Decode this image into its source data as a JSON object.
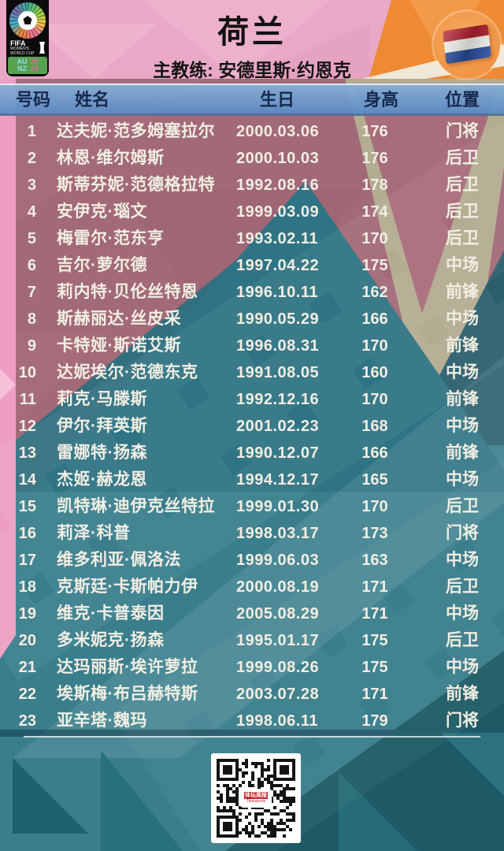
{
  "header": {
    "title": "荷兰",
    "coach_line": "主教练: 安德里斯·约恩克",
    "logo": {
      "fifa": "FIFA",
      "sub": "WOMEN'S\nWORLD CUP",
      "hosts": "AU\nNZ",
      "year": "20\n23"
    }
  },
  "table": {
    "columns": [
      "号码",
      "姓名",
      "生日",
      "身高",
      "位置"
    ],
    "players": [
      {
        "no": "1",
        "name": "达夫妮·范多姆塞拉尔",
        "dob": "2000.03.06",
        "height": "176",
        "pos": "门将"
      },
      {
        "no": "2",
        "name": "林恩·维尔姆斯",
        "dob": "2000.10.03",
        "height": "176",
        "pos": "后卫"
      },
      {
        "no": "3",
        "name": "斯蒂芬妮·范德格拉特",
        "dob": "1992.08.16",
        "height": "178",
        "pos": "后卫"
      },
      {
        "no": "4",
        "name": "安伊克·瑙文",
        "dob": "1999.03.09",
        "height": "174",
        "pos": "后卫"
      },
      {
        "no": "5",
        "name": "梅雷尔·范东亨",
        "dob": "1993.02.11",
        "height": "170",
        "pos": "后卫"
      },
      {
        "no": "6",
        "name": "吉尔·萝尔德",
        "dob": "1997.04.22",
        "height": "175",
        "pos": "中场"
      },
      {
        "no": "7",
        "name": "莉内特·贝伦丝特恩",
        "dob": "1996.10.11",
        "height": "162",
        "pos": "前锋"
      },
      {
        "no": "8",
        "name": "斯赫丽达·丝皮采",
        "dob": "1990.05.29",
        "height": "166",
        "pos": "中场"
      },
      {
        "no": "9",
        "name": "卡特娅·斯诺艾斯",
        "dob": "1996.08.31",
        "height": "170",
        "pos": "前锋"
      },
      {
        "no": "10",
        "name": "达妮埃尔·范德东克",
        "dob": "1991.08.05",
        "height": "160",
        "pos": "中场"
      },
      {
        "no": "11",
        "name": "莉克·马滕斯",
        "dob": "1992.12.16",
        "height": "170",
        "pos": "前锋"
      },
      {
        "no": "12",
        "name": "伊尔·拜英斯",
        "dob": "2001.02.23",
        "height": "168",
        "pos": "中场"
      },
      {
        "no": "13",
        "name": "雷娜特·扬森",
        "dob": "1990.12.07",
        "height": "166",
        "pos": "前锋"
      },
      {
        "no": "14",
        "name": "杰姬·赫龙恩",
        "dob": "1994.12.17",
        "height": "165",
        "pos": "中场"
      },
      {
        "no": "15",
        "name": "凯特琳·迪伊克丝特拉",
        "dob": "1999.01.30",
        "height": "170",
        "pos": "后卫"
      },
      {
        "no": "16",
        "name": "莉泽·科普",
        "dob": "1998.03.17",
        "height": "173",
        "pos": "门将"
      },
      {
        "no": "17",
        "name": "维多利亚·佩洛法",
        "dob": "1999.06.03",
        "height": "163",
        "pos": "中场"
      },
      {
        "no": "18",
        "name": "克斯廷·卡斯帕力伊",
        "dob": "2000.08.19",
        "height": "171",
        "pos": "后卫"
      },
      {
        "no": "19",
        "name": "维克·卡普泰因",
        "dob": "2005.08.29",
        "height": "171",
        "pos": "中场"
      },
      {
        "no": "20",
        "name": "多米妮克·扬森",
        "dob": "1995.01.17",
        "height": "175",
        "pos": "后卫"
      },
      {
        "no": "21",
        "name": "达玛丽斯·埃许萝拉",
        "dob": "1999.08.26",
        "height": "175",
        "pos": "中场"
      },
      {
        "no": "22",
        "name": "埃斯梅·布吕赫特斯",
        "dob": "2003.07.28",
        "height": "171",
        "pos": "前锋"
      },
      {
        "no": "23",
        "name": "亚辛塔·魏玛",
        "dob": "1998.06.11",
        "height": "179",
        "pos": "门将"
      }
    ]
  },
  "qr": {
    "label_line1": "体坛周报",
    "label_line2": "Titansports"
  },
  "colors": {
    "header_pink": "#e9a8c6",
    "orange": "#ee8a33",
    "cream": "#efe8d8",
    "mauve": "#a26977",
    "beige": "#b3ac92",
    "teal": "#3a7e8c",
    "teal_dark": "#1d5a66",
    "header_band_blue": "#5c8cc6",
    "header_text_navy": "#15294e",
    "row_text": "#f1eee3",
    "flag_red": "#b01f2e",
    "flag_blue": "#274b9a",
    "qr_red": "#c9252b"
  }
}
